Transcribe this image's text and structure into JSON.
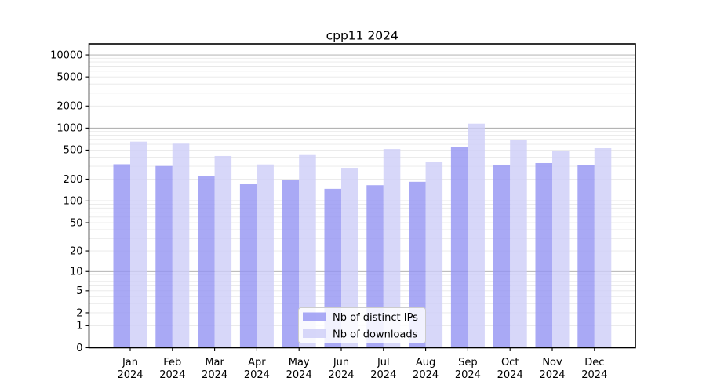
{
  "chart_data": {
    "type": "bar",
    "title": "cpp11 2024",
    "scale": "log1p",
    "categories": [
      "Jan",
      "Feb",
      "Mar",
      "Apr",
      "May",
      "Jun",
      "Jul",
      "Aug",
      "Sep",
      "Oct",
      "Nov",
      "Dec"
    ],
    "year_suffix": "2024",
    "series": [
      {
        "name": "Nb of distinct IPs",
        "color": "rgba(148,148,243,0.8)",
        "values": [
          320,
          303,
          222,
          170,
          196,
          147,
          165,
          184,
          549,
          316,
          332,
          311
        ]
      },
      {
        "name": "Nb of downloads",
        "color": "rgba(205,205,247,0.8)",
        "values": [
          652,
          612,
          415,
          318,
          428,
          286,
          517,
          343,
          1150,
          680,
          485,
          531
        ]
      }
    ],
    "yticks": [
      0,
      1,
      2,
      5,
      10,
      20,
      50,
      100,
      200,
      500,
      1000,
      2000,
      5000,
      10000
    ],
    "ylim": [
      0,
      14140
    ],
    "grid": true,
    "legend_position": "lower center",
    "colors": {
      "major_grid": "#a9a9a9",
      "minor_grid": "#e8e8e8",
      "frame": "#000000",
      "background": "#ffffff",
      "legend_border": "#cccccc",
      "legend_fill": "rgba(255,255,255,0.85)"
    }
  }
}
